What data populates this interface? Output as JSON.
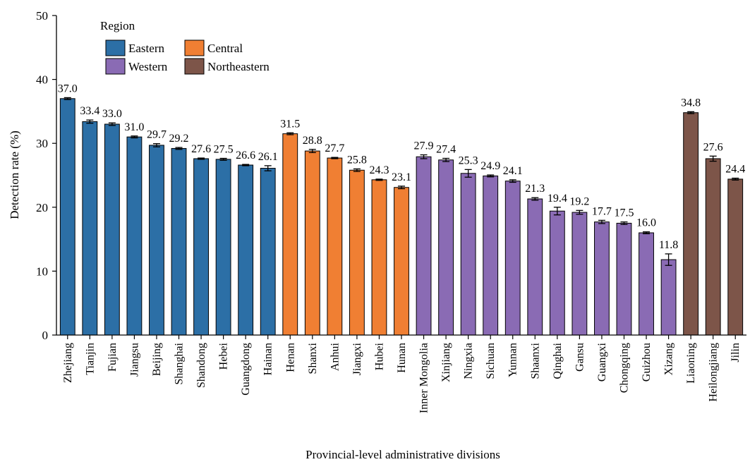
{
  "chart_data": {
    "type": "bar",
    "xlabel": "Provincial-level administrative divisions",
    "ylabel": "Detection rate (%)",
    "ylim": [
      0,
      50
    ],
    "yticks": [
      0,
      10,
      20,
      30,
      40,
      50
    ],
    "grid": false,
    "legend": {
      "title": "Region",
      "placement": "top-left",
      "entries": [
        {
          "name": "Eastern",
          "color": "#2c6fa6"
        },
        {
          "name": "Central",
          "color": "#f07f33"
        },
        {
          "name": "Western",
          "color": "#8a6bb4"
        },
        {
          "name": "Northeastern",
          "color": "#7d5549"
        }
      ]
    },
    "categories": [
      "Zhejiang",
      "Tianjin",
      "Fujian",
      "Jiangsu",
      "Beijing",
      "Shanghai",
      "Shandong",
      "Hebei",
      "Guangdong",
      "Hainan",
      "Henan",
      "Shanxi",
      "Anhui",
      "Jiangxi",
      "Hubei",
      "Hunan",
      "Inner Mongolia",
      "Xinjiang",
      "Ningxia",
      "Sichuan",
      "Yunnan",
      "Shaanxi",
      "Qinghai",
      "Gansu",
      "Guangxi",
      "Chongqing",
      "Guizhou",
      "Xizang",
      "Liaoning",
      "Heilongjiang",
      "Jilin"
    ],
    "values": [
      37.0,
      33.4,
      33.0,
      31.0,
      29.7,
      29.2,
      27.6,
      27.5,
      26.6,
      26.1,
      31.5,
      28.8,
      27.7,
      25.8,
      24.3,
      23.1,
      27.9,
      27.4,
      25.3,
      24.9,
      24.1,
      21.3,
      19.4,
      19.2,
      17.7,
      17.5,
      16.0,
      11.8,
      34.8,
      27.6,
      24.4
    ],
    "value_labels": [
      "37.0",
      "33.4",
      "33.0",
      "31.0",
      "29.7",
      "29.2",
      "27.6",
      "27.5",
      "26.6",
      "26.1",
      "31.5",
      "28.8",
      "27.7",
      "25.8",
      "24.3",
      "23.1",
      "27.9",
      "27.4",
      "25.3",
      "24.9",
      "24.1",
      "21.3",
      "19.4",
      "19.2",
      "17.7",
      "17.5",
      "16.0",
      "11.8",
      "34.8",
      "27.6",
      "24.4"
    ],
    "errors": [
      0.15,
      0.25,
      0.2,
      0.15,
      0.25,
      0.15,
      0.1,
      0.15,
      0.1,
      0.4,
      0.15,
      0.25,
      0.1,
      0.2,
      0.1,
      0.2,
      0.3,
      0.25,
      0.6,
      0.15,
      0.2,
      0.2,
      0.6,
      0.3,
      0.25,
      0.2,
      0.15,
      0.9,
      0.15,
      0.4,
      0.15
    ],
    "regions": [
      "Eastern",
      "Eastern",
      "Eastern",
      "Eastern",
      "Eastern",
      "Eastern",
      "Eastern",
      "Eastern",
      "Eastern",
      "Eastern",
      "Central",
      "Central",
      "Central",
      "Central",
      "Central",
      "Central",
      "Western",
      "Western",
      "Western",
      "Western",
      "Western",
      "Western",
      "Western",
      "Western",
      "Western",
      "Western",
      "Western",
      "Western",
      "Northeastern",
      "Northeastern",
      "Northeastern"
    ]
  }
}
